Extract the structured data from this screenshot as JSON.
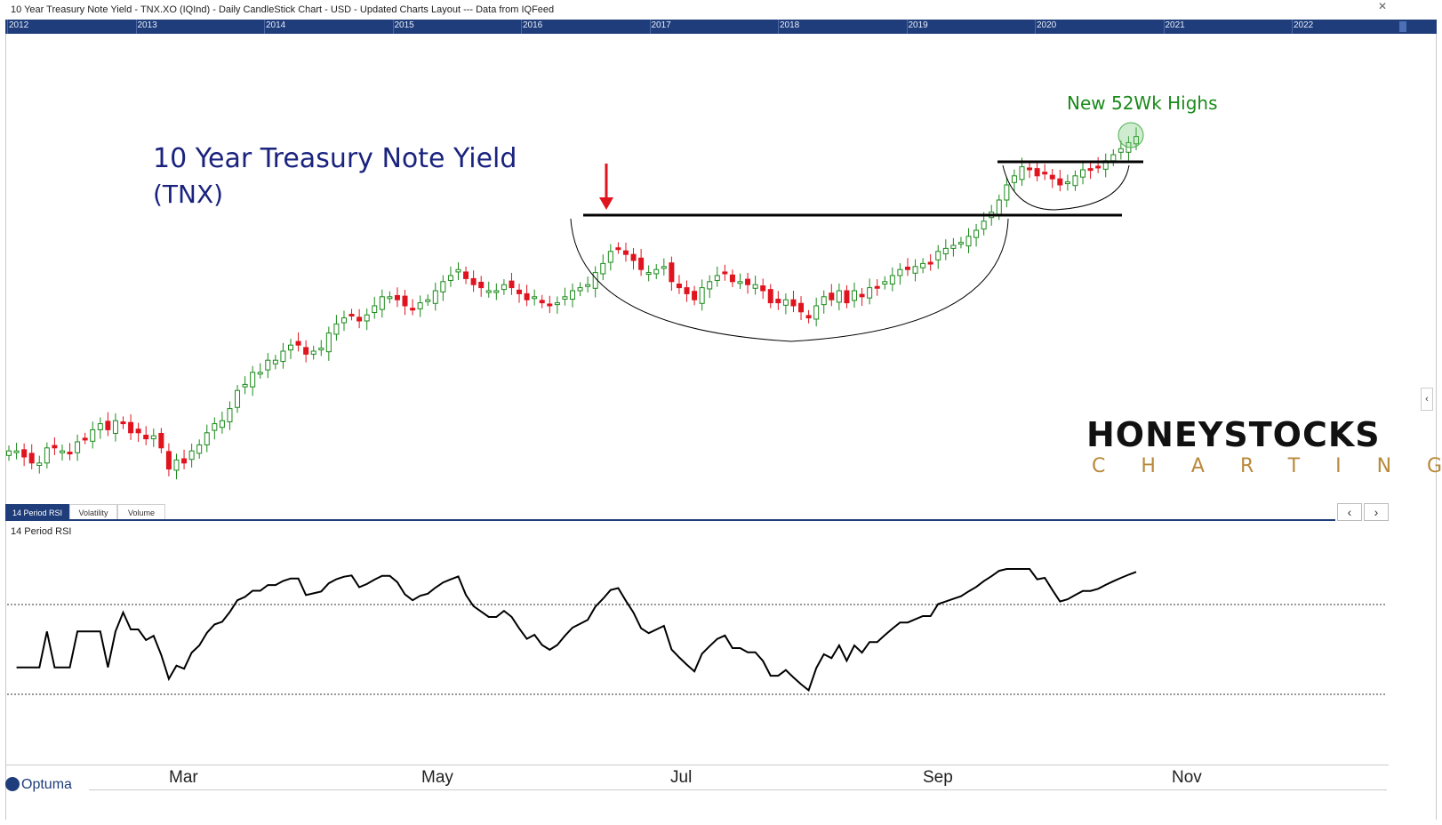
{
  "window": {
    "title": "10 Year Treasury Note Yield - TNX.XO (IQInd) - Daily CandleStick Chart - USD - Updated Charts Layout --- Data from IQFeed"
  },
  "navigator": {
    "years": [
      "2012",
      "2013",
      "2014",
      "2015",
      "2016",
      "2017",
      "2018",
      "2019",
      "2020",
      "2021",
      "2022"
    ]
  },
  "tabs": [
    {
      "label": "14 Period RSI",
      "active": true
    },
    {
      "label": "Volatility",
      "active": false
    },
    {
      "label": "Volume",
      "active": false
    }
  ],
  "pager": {
    "prev": "‹",
    "next": "›"
  },
  "rsi_panel": {
    "label": "14 Period RSI"
  },
  "logo": {
    "brand": "HONEYSTOCKS",
    "sub": "CHARTING"
  },
  "footer": {
    "brand": "Optuma"
  },
  "x_axis": {
    "months": [
      "Mar",
      "May",
      "Jul",
      "Sep",
      "Nov"
    ]
  },
  "colors": {
    "up": "#1a8a1a",
    "down": "#e0141e",
    "annotation": "#1a8a1a",
    "title": "#1a237e",
    "accent": "#1f3d7a"
  },
  "chart_data": [
    {
      "type": "candlestick",
      "title": "10 Year Treasury Note Yield",
      "subtitle": "(TNX)",
      "annotation": "New 52Wk Highs",
      "x": "trading sessions (Feb to Oct, in order)",
      "close": [
        13.2,
        13.2,
        13.0,
        12.8,
        12.8,
        13.3,
        13.3,
        13.2,
        13.1,
        13.5,
        13.6,
        13.9,
        14.1,
        13.9,
        14.2,
        14.1,
        13.8,
        13.8,
        13.6,
        13.7,
        13.3,
        12.6,
        12.9,
        12.8,
        13.2,
        13.4,
        13.8,
        14.1,
        14.2,
        14.6,
        15.2,
        15.4,
        15.8,
        15.8,
        16.2,
        16.2,
        16.5,
        16.7,
        16.7,
        16.4,
        16.5,
        16.6,
        17.1,
        17.4,
        17.6,
        17.7,
        17.5,
        17.7,
        18.0,
        18.3,
        18.3,
        18.2,
        18.0,
        17.9,
        18.1,
        18.2,
        18.5,
        18.8,
        19.0,
        19.2,
        18.9,
        18.7,
        18.6,
        18.5,
        18.5,
        18.7,
        18.6,
        18.4,
        18.2,
        18.3,
        18.1,
        18.0,
        18.1,
        18.3,
        18.5,
        18.6,
        18.7,
        19.1,
        19.4,
        19.8,
        19.9,
        19.7,
        19.5,
        19.2,
        19.1,
        19.2,
        19.3,
        18.8,
        18.6,
        18.4,
        18.2,
        18.6,
        18.8,
        19.0,
        19.1,
        18.8,
        18.8,
        18.7,
        18.7,
        18.5,
        18.1,
        18.1,
        18.2,
        18.0,
        17.8,
        17.6,
        18.0,
        18.3,
        18.2,
        18.5,
        18.1,
        18.5,
        18.3,
        18.6,
        18.6,
        18.8,
        19.0,
        19.2,
        19.2,
        19.3,
        19.4,
        19.4,
        19.8,
        19.9,
        20.0,
        20.1,
        20.3,
        20.5,
        20.8,
        21.1,
        21.5,
        22.0,
        22.3,
        22.6,
        22.5,
        22.3,
        22.4,
        22.2,
        22.0,
        22.1,
        22.3,
        22.5,
        22.5,
        22.6,
        22.8,
        23.0,
        23.2,
        23.4,
        23.6
      ],
      "rsi": {
        "levels": [
          70,
          30
        ],
        "overbought_line": 70,
        "oversold_line": 30
      },
      "annotations": [
        "resistance line",
        "rounding bottom",
        "new high circle",
        "down arrow at prior high"
      ]
    }
  ]
}
